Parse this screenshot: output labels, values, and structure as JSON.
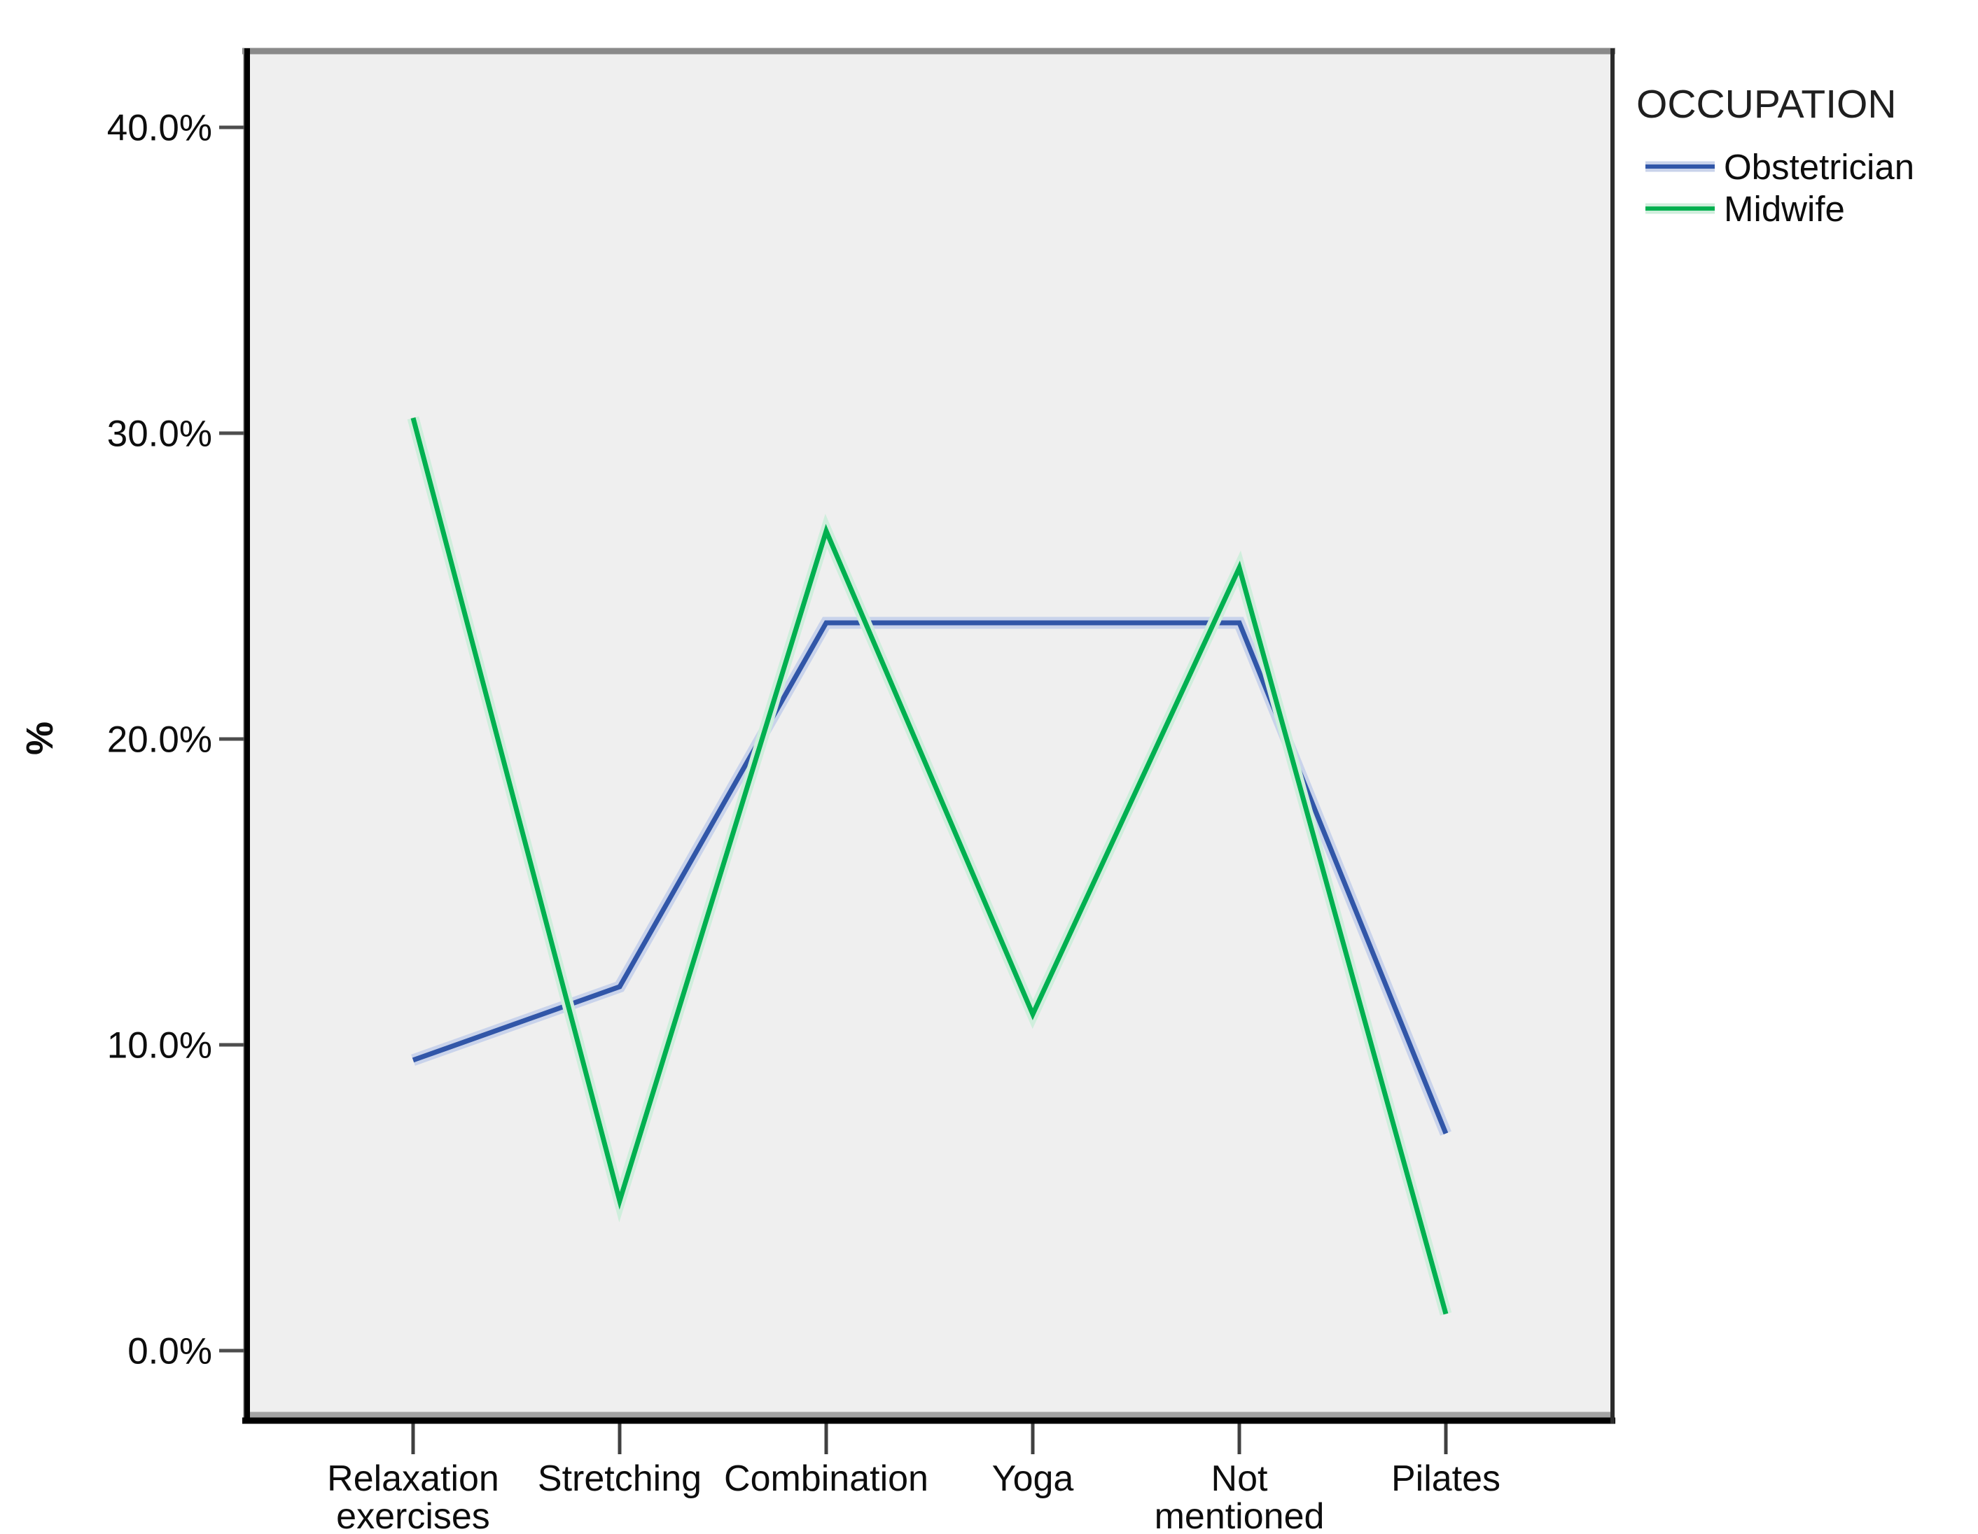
{
  "chart_data": {
    "type": "line",
    "categories": [
      "Relaxation exercises",
      "Stretching",
      "Combination",
      "Yoga",
      "Not mentioned",
      "Pilates"
    ],
    "x_tick_lines": [
      [
        "Relaxation",
        "exercises"
      ],
      [
        "Stretching"
      ],
      [
        "Combination"
      ],
      [
        "Yoga"
      ],
      [
        "Not",
        "mentioned"
      ],
      [
        "Pilates"
      ]
    ],
    "series": [
      {
        "name": "Obstetrician",
        "color": "#3156A8",
        "halo": "#C9D3EB",
        "values": [
          9.5,
          11.9,
          23.8,
          23.8,
          23.8,
          7.1
        ]
      },
      {
        "name": "Midwife",
        "color": "#00B050",
        "halo": "#CFEEDC",
        "values": [
          30.5,
          4.9,
          26.8,
          11.0,
          25.6,
          1.2
        ]
      }
    ],
    "ylabel": "%",
    "xlabel": "",
    "y_ticks": [
      {
        "value": 40,
        "label": "40.0%"
      },
      {
        "value": 30,
        "label": "30.0%"
      },
      {
        "value": 20,
        "label": "20.0%"
      },
      {
        "value": 10,
        "label": "10.0%"
      },
      {
        "value": 0,
        "label": "0.0%"
      }
    ],
    "ylim": [
      -2.3,
      42.5
    ],
    "grid": false,
    "legend": {
      "title": "OCCUPATION",
      "position": "top-right-outside",
      "entries": [
        "Obstetrician",
        "Midwife"
      ]
    }
  },
  "colors": {
    "page_bg": "#FFFFFF",
    "plot_bg": "#EFEFEF",
    "plot_border_gray": "#8A8A8A",
    "plot_inner_shadow": "#A3A3A3",
    "axis_black": "#000000",
    "tick_gray": "#4D4D4D",
    "text": "#0D0D0D",
    "legend_title_text": "#1F1F1F"
  }
}
